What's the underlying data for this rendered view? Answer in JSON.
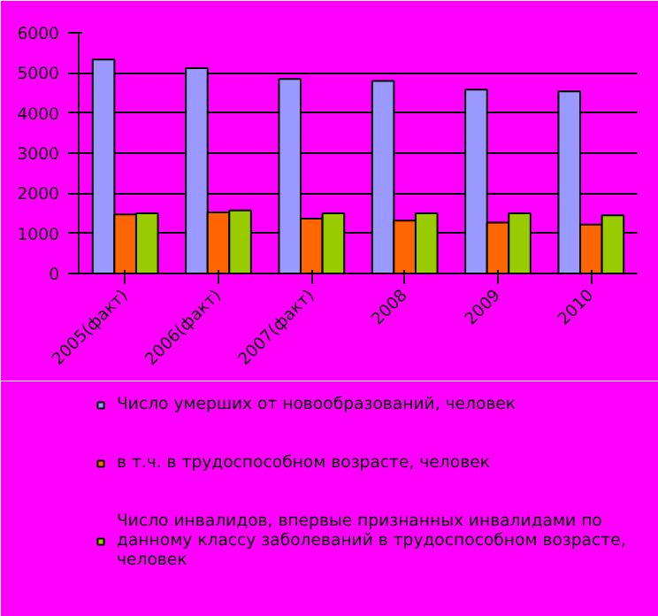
{
  "chart_data": {
    "type": "bar",
    "categories": [
      "2005(факт)",
      "2006(факт)",
      "2007(факт)",
      "2008",
      "2009",
      "2010"
    ],
    "series": [
      {
        "name": "Число умерших от новообразований, человек",
        "color": "#9999ff",
        "values": [
          5330,
          5120,
          4850,
          4800,
          4580,
          4540
        ]
      },
      {
        "name": "в т.ч. в трудоспособном возрасте, человек",
        "color": "#ff6600",
        "values": [
          1470,
          1520,
          1370,
          1320,
          1270,
          1220
        ]
      },
      {
        "name": "Число инвалидов, впервые признанных инвалидами по данному классу заболеваний в трудоспособном возрасте, человек",
        "color": "#99cc00",
        "values": [
          1500,
          1570,
          1500,
          1500,
          1500,
          1450
        ]
      }
    ],
    "ylim": [
      0,
      6000
    ],
    "yticks": [
      0,
      1000,
      2000,
      3000,
      4000,
      5000,
      6000
    ],
    "grid": "y",
    "legend": "bottom"
  }
}
